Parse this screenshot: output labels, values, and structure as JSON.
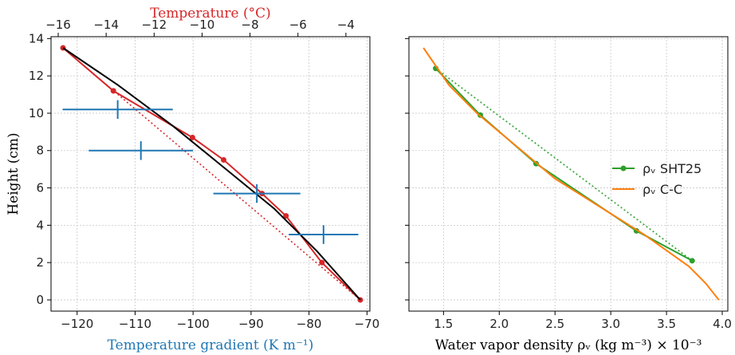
{
  "chart_data": [
    {
      "type": "line",
      "xlabel": "Temperature gradient (K m⁻¹)",
      "xlabel_color": "#1f77b4",
      "x2label": "Temperature (°C)",
      "x2label_color": "#d62728",
      "ylabel": "Height (cm)",
      "xlim": [
        -124.5,
        -69.5
      ],
      "x2lim": [
        -16.3,
        -3.0
      ],
      "ylim": [
        -0.6,
        14.1
      ],
      "xticks": [
        -120,
        -110,
        -100,
        -90,
        -80,
        -70
      ],
      "xtick_labels": [
        "−120",
        "−110",
        "−100",
        "−90",
        "−80",
        "−70"
      ],
      "x2ticks": [
        -16,
        -14,
        -12,
        -10,
        -8,
        -6,
        -4
      ],
      "x2tick_labels": [
        "−16",
        "−14",
        "−12",
        "−10",
        "−8",
        "−6",
        "−4"
      ],
      "yticks": [
        0,
        2,
        4,
        6,
        8,
        10,
        12,
        14
      ],
      "ytick_labels": [
        "0",
        "2",
        "4",
        "6",
        "8",
        "10",
        "12",
        "14"
      ],
      "grid": true,
      "series": [
        {
          "axis": "x2",
          "color": "#d62728",
          "style": "solid-markers",
          "points": [
            [
              -15.8,
              13.5
            ],
            [
              -13.7,
              11.2
            ],
            [
              -10.4,
              8.7
            ],
            [
              -9.1,
              7.5
            ],
            [
              -7.5,
              5.7
            ],
            [
              -6.5,
              4.5
            ],
            [
              -5.0,
              2.0
            ],
            [
              -3.4,
              0.0
            ]
          ]
        },
        {
          "axis": "x2",
          "color": "#d62728",
          "style": "dotted",
          "points": [
            [
              -15.8,
              13.5
            ],
            [
              -3.4,
              0.0
            ]
          ]
        },
        {
          "axis": "x2",
          "color": "#000000",
          "style": "solid",
          "points": [
            [
              -15.8,
              13.5
            ],
            [
              -13.5,
              11.5
            ],
            [
              -11.2,
              9.3
            ],
            [
              -9.0,
              7.0
            ],
            [
              -7.0,
              4.9
            ],
            [
              -5.2,
              2.6
            ],
            [
              -3.4,
              0.0
            ]
          ]
        },
        {
          "axis": "x",
          "color": "#1f77b4",
          "style": "errorbar",
          "points": [
            {
              "x": -113.0,
              "y": 10.2,
              "xerr": 9.5,
              "yerr": 0.5
            },
            {
              "x": -109.0,
              "y": 8.0,
              "xerr": 9.0,
              "yerr": 0.5
            },
            {
              "x": -89.0,
              "y": 5.7,
              "xerr": 7.5,
              "yerr": 0.5
            },
            {
              "x": -77.5,
              "y": 3.5,
              "xerr": 6.0,
              "yerr": 0.5
            }
          ]
        }
      ]
    },
    {
      "type": "line",
      "xlabel": "Water vapor density ρᵥ (kg m⁻³) × 10⁻³",
      "xlim": [
        1.19,
        4.05
      ],
      "ylim": [
        -0.6,
        14.1
      ],
      "xticks": [
        1.5,
        2.0,
        2.5,
        3.0,
        3.5,
        4.0
      ],
      "xtick_labels": [
        "1.5",
        "2.0",
        "2.5",
        "3.0",
        "3.5",
        "4.0"
      ],
      "yticks": [
        0,
        2,
        4,
        6,
        8,
        10,
        12,
        14
      ],
      "grid": true,
      "legend": "center-right",
      "series": [
        {
          "name": "ρᵥ SHT25",
          "color": "#2ca02c",
          "style": "solid-markers",
          "points": [
            [
              1.43,
              12.4
            ],
            [
              1.83,
              9.9
            ],
            [
              2.33,
              7.3
            ],
            [
              3.23,
              3.7
            ],
            [
              3.73,
              2.1
            ]
          ]
        },
        {
          "color": "#2ca02c",
          "style": "dotted",
          "points": [
            [
              1.43,
              12.4
            ],
            [
              3.73,
              2.1
            ]
          ]
        },
        {
          "name": "ρᵥ C-C",
          "color": "#ff7f0e",
          "style": "solid",
          "points": [
            [
              1.32,
              13.5
            ],
            [
              1.55,
              11.5
            ],
            [
              1.8,
              10.0
            ],
            [
              2.1,
              8.5
            ],
            [
              2.5,
              6.5
            ],
            [
              2.9,
              5.0
            ],
            [
              3.3,
              3.5
            ],
            [
              3.7,
              1.8
            ],
            [
              3.85,
              0.9
            ],
            [
              3.97,
              0.0
            ]
          ]
        }
      ]
    }
  ]
}
